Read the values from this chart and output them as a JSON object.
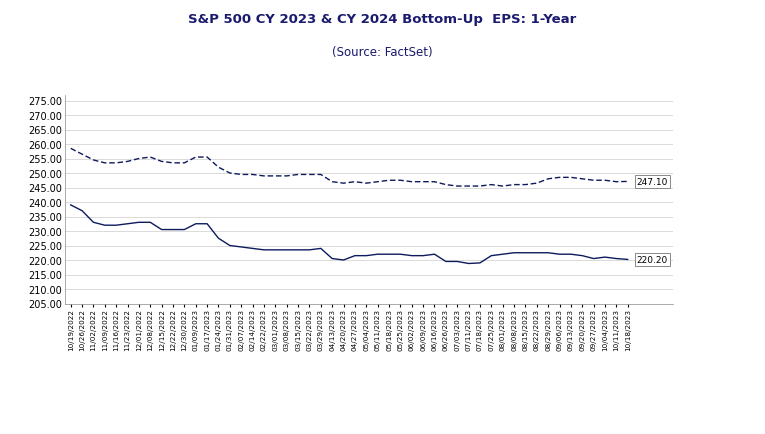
{
  "title": "S&P 500 CY 2023 & CY 2024 Bottom-Up  EPS: 1-Year",
  "subtitle": "(Source: FactSet)",
  "title_color": "#1a1a6e",
  "bg_color": "#ffffff",
  "plot_bg_color": "#ffffff",
  "ylim": [
    205.0,
    277.0
  ],
  "yticks": [
    205.0,
    210.0,
    215.0,
    220.0,
    225.0,
    230.0,
    235.0,
    240.0,
    245.0,
    250.0,
    255.0,
    260.0,
    265.0,
    270.0,
    275.0
  ],
  "line_color": "#0d1b5e",
  "end_label_2024": "247.10",
  "end_label_2023": "220.20",
  "x_labels": [
    "10/19/2022",
    "10/26/2022",
    "11/02/2022",
    "11/09/2022",
    "11/16/2022",
    "11/23/2022",
    "12/01/2022",
    "12/08/2022",
    "12/15/2022",
    "12/22/2022",
    "12/30/2022",
    "01/09/2023",
    "01/17/2023",
    "01/24/2023",
    "01/31/2023",
    "02/07/2023",
    "02/14/2023",
    "02/22/2023",
    "03/01/2023",
    "03/08/2023",
    "03/15/2023",
    "03/22/2023",
    "03/29/2023",
    "04/13/2023",
    "04/20/2023",
    "04/27/2023",
    "05/04/2023",
    "05/11/2023",
    "05/18/2023",
    "05/25/2023",
    "06/02/2023",
    "06/09/2023",
    "06/16/2023",
    "06/26/2023",
    "07/03/2023",
    "07/11/2023",
    "07/18/2023",
    "07/25/2023",
    "08/01/2023",
    "08/08/2023",
    "08/15/2023",
    "08/22/2023",
    "08/29/2023",
    "09/06/2023",
    "09/13/2023",
    "09/20/2023",
    "09/27/2023",
    "10/04/2023",
    "10/11/2023",
    "10/18/2023"
  ],
  "cy2024_values": [
    258.5,
    256.5,
    254.5,
    253.5,
    253.5,
    254.0,
    255.0,
    255.5,
    254.0,
    253.5,
    253.5,
    255.5,
    255.5,
    252.0,
    250.0,
    249.5,
    249.5,
    249.0,
    249.0,
    249.0,
    249.5,
    249.5,
    249.5,
    247.0,
    246.5,
    247.0,
    246.5,
    247.0,
    247.5,
    247.5,
    247.0,
    247.0,
    247.0,
    246.0,
    245.5,
    245.5,
    245.5,
    246.0,
    245.5,
    246.0,
    246.0,
    246.5,
    248.0,
    248.5,
    248.5,
    248.0,
    247.5,
    247.5,
    247.0,
    247.1
  ],
  "cy2023_values": [
    239.0,
    237.0,
    233.0,
    232.0,
    232.0,
    232.5,
    233.0,
    233.0,
    230.5,
    230.5,
    230.5,
    232.5,
    232.5,
    227.5,
    225.0,
    224.5,
    224.0,
    223.5,
    223.5,
    223.5,
    223.5,
    223.5,
    224.0,
    220.5,
    220.0,
    221.5,
    221.5,
    222.0,
    222.0,
    222.0,
    221.5,
    221.5,
    222.0,
    219.5,
    219.5,
    218.8,
    219.0,
    221.5,
    222.0,
    222.5,
    222.5,
    222.5,
    222.5,
    222.0,
    222.0,
    221.5,
    220.5,
    221.0,
    220.5,
    220.2
  ],
  "title_fontsize": 9.5,
  "subtitle_fontsize": 8.5,
  "ytick_fontsize": 7,
  "xtick_fontsize": 5.2,
  "legend_fontsize": 7.5
}
